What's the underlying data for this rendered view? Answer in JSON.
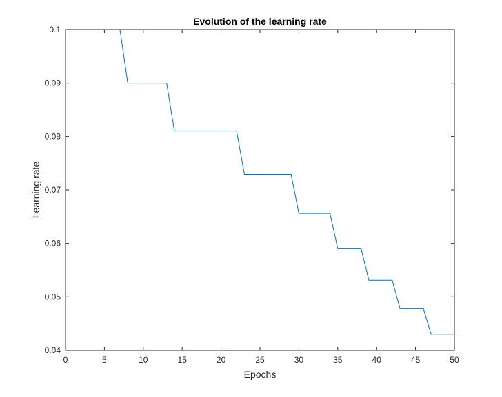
{
  "chart_data": {
    "type": "line",
    "title": "Evolution of the learning rate",
    "xlabel": "Epochs",
    "ylabel": "Learning rate",
    "xlim": [
      0,
      50
    ],
    "ylim": [
      0.04,
      0.1
    ],
    "xticks": [
      0,
      5,
      10,
      15,
      20,
      25,
      30,
      35,
      40,
      45,
      50
    ],
    "xtick_labels": [
      "0",
      "5",
      "10",
      "15",
      "20",
      "25",
      "30",
      "35",
      "40",
      "45",
      "50"
    ],
    "yticks": [
      0.04,
      0.05,
      0.06,
      0.07,
      0.08,
      0.09,
      0.1
    ],
    "ytick_labels": [
      "0.04",
      "0.05",
      "0.06",
      "0.07",
      "0.08",
      "0.09",
      "0.1"
    ],
    "grid": false,
    "legend": "none",
    "series": [
      {
        "color": "#0072BD",
        "x": [
          1,
          7,
          8,
          13,
          14,
          22,
          23,
          29,
          30,
          34,
          35,
          38,
          39,
          42,
          43,
          46,
          47,
          50
        ],
        "y": [
          0.1,
          0.1,
          0.09,
          0.09,
          0.081,
          0.081,
          0.0729,
          0.0729,
          0.0656,
          0.0656,
          0.059,
          0.059,
          0.0531,
          0.0531,
          0.0478,
          0.0478,
          0.043,
          0.043
        ]
      }
    ]
  }
}
